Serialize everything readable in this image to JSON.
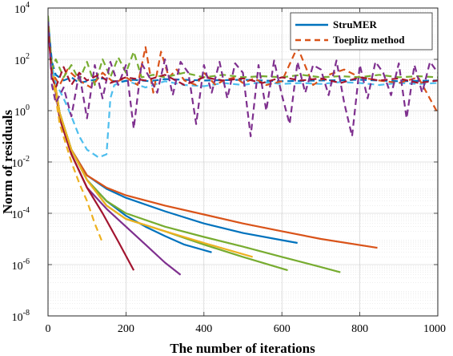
{
  "chart_data": {
    "type": "line",
    "xlabel": "The number of iterations",
    "ylabel": "Norm of residuals",
    "xlim": [
      0,
      1000
    ],
    "ylim": [
      1e-08,
      10000
    ],
    "yscale": "log",
    "grid": true,
    "x_ticks": [
      0,
      200,
      400,
      600,
      800,
      1000
    ],
    "x_tick_labels": [
      "0",
      "200",
      "400",
      "600",
      "800",
      "1000"
    ],
    "y_ticks": [
      1e-08,
      1e-06,
      0.0001,
      0.01,
      1,
      100,
      10000
    ],
    "y_tick_labels": [
      {
        "base": "10",
        "exp": "-8"
      },
      {
        "base": "10",
        "exp": "-6"
      },
      {
        "base": "10",
        "exp": "-4"
      },
      {
        "base": "10",
        "exp": "-2"
      },
      {
        "base": "10",
        "exp": "0"
      },
      {
        "base": "10",
        "exp": "2"
      },
      {
        "base": "10",
        "exp": "4"
      }
    ],
    "legend": {
      "position": "top-right",
      "entries": [
        {
          "label": "StruMER",
          "style": "solid",
          "color": "#0072BD"
        },
        {
          "label": "Toeplitz method",
          "style": "dashed",
          "color": "#D95319"
        }
      ]
    },
    "series": [
      {
        "method": "StruMER",
        "style": "solid",
        "color": "#7E2F8E",
        "x": [
          0,
          10,
          30,
          60,
          100,
          150,
          200,
          250,
          300,
          340
        ],
        "y": [
          1000,
          50,
          0.5,
          0.02,
          0.001,
          0.00015,
          3e-05,
          6e-06,
          1.2e-06,
          4e-07
        ]
      },
      {
        "method": "StruMER",
        "style": "solid",
        "color": "#A2142F",
        "x": [
          0,
          10,
          30,
          60,
          100,
          140,
          180,
          220
        ],
        "y": [
          1000,
          50,
          0.5,
          0.02,
          0.001,
          0.0001,
          8e-06,
          6e-07
        ]
      },
      {
        "method": "StruMER",
        "style": "solid",
        "color": "#0072BD",
        "x": [
          0,
          10,
          30,
          60,
          100,
          150,
          200,
          250,
          300,
          350,
          420
        ],
        "y": [
          2000,
          60,
          0.8,
          0.03,
          0.002,
          0.0003,
          8e-05,
          3e-05,
          1.3e-05,
          6e-06,
          3e-06
        ]
      },
      {
        "method": "StruMER",
        "style": "solid",
        "color": "#0072BD",
        "x": [
          0,
          10,
          30,
          60,
          100,
          150,
          200,
          300,
          400,
          500,
          600,
          640
        ],
        "y": [
          2000,
          60,
          0.8,
          0.03,
          0.003,
          0.0009,
          0.0004,
          0.00012,
          4e-05,
          1.7e-05,
          9e-06,
          7e-06
        ]
      },
      {
        "method": "StruMER",
        "style": "solid",
        "color": "#D95319",
        "x": [
          0,
          10,
          30,
          60,
          100,
          150,
          200,
          300,
          400,
          500,
          600,
          700,
          845
        ],
        "y": [
          2000,
          60,
          0.8,
          0.03,
          0.003,
          0.001,
          0.0005,
          0.0002,
          9e-05,
          4e-05,
          2e-05,
          1e-05,
          4.5e-06
        ]
      },
      {
        "method": "StruMER",
        "style": "solid",
        "color": "#77AC30",
        "x": [
          0,
          10,
          30,
          60,
          100,
          150,
          200,
          300,
          400,
          500,
          615
        ],
        "y": [
          2000,
          60,
          0.8,
          0.03,
          0.002,
          0.0002,
          6e-05,
          2e-05,
          6e-06,
          2e-06,
          6e-07
        ]
      },
      {
        "method": "StruMER",
        "style": "solid",
        "color": "#77AC30",
        "x": [
          0,
          10,
          30,
          60,
          100,
          150,
          200,
          300,
          400,
          500,
          600,
          700,
          750
        ],
        "y": [
          2000,
          60,
          0.8,
          0.03,
          0.002,
          0.0003,
          0.0001,
          3e-05,
          1.2e-05,
          5e-06,
          2e-06,
          8e-07,
          5e-07
        ]
      },
      {
        "method": "StruMER",
        "style": "solid",
        "color": "#EDB120",
        "x": [
          0,
          10,
          30,
          60,
          100,
          150,
          200,
          300,
          400,
          525
        ],
        "y": [
          2000,
          60,
          0.8,
          0.03,
          0.002,
          0.0002,
          6e-05,
          2e-05,
          7e-06,
          2e-06
        ]
      },
      {
        "method": "Toeplitz method",
        "style": "dashed",
        "color": "#EDB120",
        "x": [
          0,
          10,
          30,
          60,
          80,
          100,
          120,
          140
        ],
        "y": [
          1000,
          30,
          0.3,
          0.01,
          0.0015,
          0.0003,
          4e-05,
          7e-06
        ]
      },
      {
        "method": "Toeplitz method",
        "style": "dashed",
        "color": "#4DBEEE",
        "x": [
          0,
          10,
          20,
          40,
          60,
          80,
          100,
          130,
          150,
          160,
          170,
          200,
          250,
          300,
          350,
          400,
          450,
          500,
          550,
          600,
          650,
          700,
          750,
          800,
          850,
          900,
          950,
          1000
        ],
        "y": [
          4000,
          50,
          12,
          3,
          0.6,
          0.1,
          0.03,
          0.015,
          0.02,
          3,
          10,
          15,
          8,
          14,
          10,
          9,
          12,
          10,
          13,
          11,
          12,
          11,
          13,
          12,
          10,
          12,
          11,
          12
        ]
      },
      {
        "method": "Toeplitz method",
        "style": "dashed",
        "color": "#0072BD",
        "x": [
          0,
          10,
          20,
          40,
          60,
          80,
          100,
          140,
          180,
          220,
          260,
          300,
          400,
          500,
          600,
          700,
          800,
          900,
          1000
        ],
        "y": [
          3000,
          80,
          25,
          15,
          20,
          12,
          14,
          18,
          13,
          16,
          14,
          17,
          15,
          16,
          14,
          15,
          16,
          14,
          15
        ]
      },
      {
        "method": "Toeplitz method",
        "style": "dashed",
        "color": "#D95319",
        "x": [
          0,
          10,
          30,
          50,
          80,
          110,
          140,
          170,
          200,
          230,
          250,
          270,
          290,
          310,
          330,
          350,
          380,
          400,
          430,
          450,
          480,
          500,
          530,
          560,
          600,
          640,
          680,
          720,
          760,
          800,
          850,
          900,
          950,
          1000
        ],
        "y": [
          2000,
          30,
          10,
          40,
          15,
          8,
          30,
          12,
          20,
          10,
          300,
          5,
          200,
          20,
          40,
          15,
          10,
          30,
          10,
          15,
          20,
          12,
          18,
          10,
          14,
          300,
          10,
          25,
          40,
          20,
          15,
          12,
          20,
          0.8
        ]
      },
      {
        "method": "Toeplitz method",
        "style": "dashed",
        "color": "#77AC30",
        "x": [
          0,
          10,
          20,
          40,
          60,
          80,
          100,
          120,
          140,
          160,
          180,
          200,
          220,
          240,
          270,
          300,
          350,
          400,
          450,
          500,
          550,
          600,
          650,
          700,
          750,
          800,
          850,
          900,
          950,
          1000
        ],
        "y": [
          5000,
          40,
          100,
          20,
          60,
          15,
          80,
          10,
          100,
          20,
          120,
          30,
          200,
          20,
          25,
          20,
          30,
          20,
          25,
          20,
          22,
          20,
          25,
          20,
          22,
          20,
          25,
          20,
          22,
          20
        ]
      },
      {
        "method": "Toeplitz method",
        "style": "dashed",
        "color": "#7E2F8E",
        "x": [
          0,
          10,
          20,
          40,
          60,
          80,
          100,
          120,
          140,
          160,
          180,
          200,
          220,
          240,
          260,
          280,
          300,
          320,
          340,
          360,
          380,
          400,
          420,
          440,
          460,
          480,
          500,
          520,
          540,
          560,
          580,
          600,
          620,
          640,
          660,
          680,
          700,
          720,
          740,
          760,
          780,
          800,
          820,
          840,
          860,
          880,
          900,
          920,
          940,
          960,
          980,
          1000
        ],
        "y": [
          3000,
          10,
          2,
          8,
          0.6,
          30,
          0.5,
          60,
          3,
          80,
          10,
          60,
          0.2,
          70,
          20,
          5,
          100,
          4,
          80,
          30,
          0.3,
          60,
          5,
          80,
          3,
          70,
          30,
          0.1,
          60,
          1,
          90,
          4,
          0.3,
          80,
          5,
          60,
          40,
          4,
          90,
          2,
          0.1,
          60,
          3,
          80,
          30,
          4,
          70,
          0.5,
          60,
          5,
          80,
          30
        ]
      },
      {
        "method": "Toeplitz method",
        "style": "dashed",
        "color": "#A2142F",
        "x": [
          0,
          10,
          20,
          40,
          60,
          80,
          100,
          130,
          160,
          200,
          250,
          300,
          350,
          400,
          450,
          500,
          550,
          600,
          650,
          700,
          750,
          800,
          850,
          900,
          950,
          1000
        ],
        "y": [
          2000,
          20,
          8,
          50,
          10,
          30,
          15,
          25,
          12,
          20,
          15,
          25,
          10,
          20,
          15,
          18,
          12,
          20,
          15,
          18,
          12,
          20,
          15,
          18,
          12,
          15
        ]
      }
    ]
  }
}
